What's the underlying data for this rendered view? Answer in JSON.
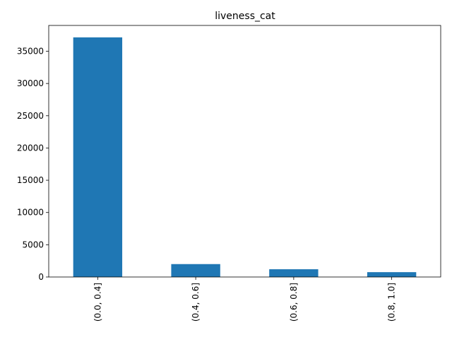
{
  "chart_data": {
    "type": "bar",
    "title": "liveness_cat",
    "xlabel": "",
    "ylabel": "",
    "categories": [
      "(0.0, 0.4]",
      "(0.4, 0.6]",
      "(0.6, 0.8]",
      "(0.8, 1.0]"
    ],
    "values": [
      37150,
      2000,
      1200,
      750
    ],
    "ylim": [
      0,
      39000
    ],
    "yticks": [
      0,
      5000,
      10000,
      15000,
      20000,
      25000,
      30000,
      35000
    ],
    "grid": false,
    "legend": "none",
    "colors": {
      "bar": "#1f77b4"
    }
  }
}
